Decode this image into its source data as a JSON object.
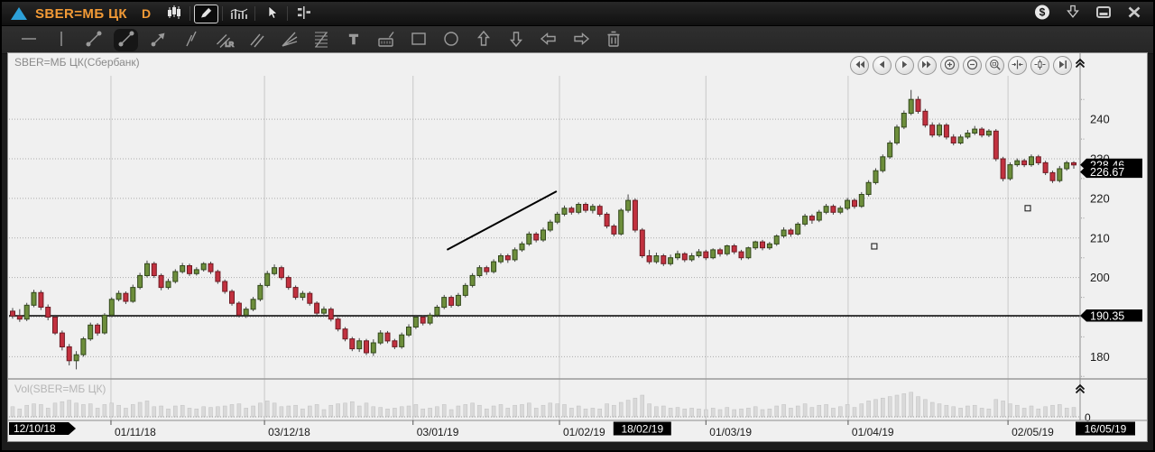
{
  "titlebar": {
    "symbol": "SBER=МБ ЦК",
    "timeframe": "D",
    "left_icons": [
      "chart-type",
      "draw",
      "indicators",
      "cursor",
      "objects-list"
    ],
    "left_selected": "draw",
    "right_icons": [
      "currency",
      "download",
      "restore",
      "close"
    ]
  },
  "toolbar": {
    "tools": [
      "horizontal-line",
      "vertical-line",
      "trend-line",
      "trend-ray",
      "arrow-line",
      "polyline",
      "linear-regression",
      "parallel-lines",
      "fan-lines",
      "fibonacci-levels",
      "text",
      "measure",
      "rectangle",
      "ellipse",
      "arrow-up",
      "arrow-down",
      "arrow-left",
      "arrow-right",
      "delete"
    ],
    "selected": "trend-ray",
    "lr_label": "LR",
    "text_tool_label": "T"
  },
  "chart": {
    "title": "SBER=МБ ЦК(Сбербанк)",
    "volume_title": "Vol(SBER=МБ ЦК)",
    "nav_buttons": [
      "scroll-left-fast",
      "scroll-left",
      "scroll-right",
      "scroll-right-fast",
      "zoom-in",
      "zoom-out",
      "zoom-area",
      "compress-horizontal",
      "compress-candles",
      "go-to-end"
    ]
  },
  "chart_data": {
    "type": "candlestick",
    "title": "SBER=МБ ЦК(Сбербанк)",
    "volume_title": "Vol(SBER=МБ ЦК)",
    "timeframe": "D",
    "ylim": [
      174,
      251
    ],
    "y_grid": [
      180,
      190,
      200,
      210,
      220,
      230,
      240
    ],
    "y_tick_labels": [
      180,
      200,
      210,
      220,
      230,
      240
    ],
    "y_minor": [
      175,
      185,
      195,
      205,
      215,
      225,
      235,
      245
    ],
    "price_tags": [
      {
        "text": "228.46",
        "price": 228.46
      },
      {
        "text": "226.67",
        "price": 226.67
      },
      {
        "text": "190.35",
        "price": 190.35
      }
    ],
    "x_ticks": [
      {
        "label": "01/11/18",
        "index": 13.9
      },
      {
        "label": "03/12/18",
        "index": 35.6
      },
      {
        "label": "03/01/19",
        "index": 56.6
      },
      {
        "label": "01/02/19",
        "index": 77.3
      },
      {
        "label": "01/03/19",
        "index": 98.0
      },
      {
        "label": "01/04/19",
        "index": 118.1
      },
      {
        "label": "02/05/19",
        "index": 140.7
      }
    ],
    "x_tags": [
      {
        "label": "12/10/18",
        "position": "left"
      },
      {
        "label": "18/02/19",
        "index": 89.0
      },
      {
        "label": "16/05/19",
        "position": "right"
      }
    ],
    "volume_zero_label": "0",
    "annotations": {
      "trendline": {
        "from": {
          "index": 61.4,
          "price": 207.0
        },
        "to": {
          "index": 76.9,
          "price": 221.8
        }
      },
      "horizontal_line_price": 190.35,
      "trade_markers": [
        {
          "index": 121.8,
          "price": 207.9
        },
        {
          "index": 143.5,
          "price": 217.5
        }
      ]
    },
    "colors": {
      "up": "#6d8e3b",
      "up_border": "#33491d",
      "down": "#c2313f",
      "down_border": "#6e1b24",
      "wick": "#444444",
      "background": "#f0f0f0",
      "grid_v": "#c9c9c9",
      "grid_h": "#ababab",
      "border": "#8c8c8c",
      "tag_bg": "#000000",
      "tag_text": "#ffffff",
      "volume_bar": "#d9d9d9",
      "volume_bar_edge": "#c0c0c0",
      "axis_text": "#1a1a1a",
      "accent_orange": "#f29a36",
      "logo_blue": "#2da0d8"
    },
    "candles": [
      [
        191.5,
        192.3,
        189.6,
        190.3,
        70
      ],
      [
        190.3,
        192.0,
        188.8,
        189.5,
        55
      ],
      [
        189.5,
        193.6,
        189.0,
        193.0,
        80
      ],
      [
        193.0,
        196.9,
        192.5,
        196.2,
        90
      ],
      [
        196.2,
        196.8,
        191.8,
        192.5,
        85
      ],
      [
        192.5,
        193.2,
        189.2,
        190.0,
        60
      ],
      [
        190.0,
        190.6,
        185.5,
        186.0,
        95
      ],
      [
        186.0,
        186.6,
        181.6,
        182.5,
        105
      ],
      [
        182.5,
        183.2,
        177.8,
        179.0,
        115
      ],
      [
        179.0,
        181.4,
        176.8,
        180.5,
        95
      ],
      [
        180.5,
        185.0,
        180.0,
        184.5,
        85
      ],
      [
        184.5,
        188.6,
        184.0,
        188.0,
        90
      ],
      [
        188.0,
        188.5,
        185.3,
        186.0,
        60
      ],
      [
        186.0,
        191.0,
        185.6,
        190.5,
        85
      ],
      [
        190.5,
        195.0,
        190.0,
        194.5,
        95
      ],
      [
        194.5,
        196.7,
        194.0,
        196.0,
        80
      ],
      [
        196.0,
        196.5,
        193.3,
        194.0,
        60
      ],
      [
        194.0,
        198.2,
        193.6,
        197.5,
        85
      ],
      [
        197.5,
        201.2,
        197.0,
        200.5,
        100
      ],
      [
        200.5,
        204.3,
        200.0,
        203.5,
        110
      ],
      [
        203.5,
        204.0,
        199.9,
        200.5,
        70
      ],
      [
        200.5,
        201.0,
        196.8,
        197.5,
        75
      ],
      [
        197.5,
        199.7,
        197.0,
        199.0,
        55
      ],
      [
        199.0,
        202.1,
        198.5,
        201.5,
        75
      ],
      [
        201.5,
        203.7,
        201.0,
        203.0,
        80
      ],
      [
        203.0,
        203.5,
        200.4,
        201.0,
        60
      ],
      [
        201.0,
        202.6,
        200.5,
        202.0,
        55
      ],
      [
        202.0,
        203.9,
        201.5,
        203.5,
        70
      ],
      [
        203.5,
        204.0,
        200.9,
        201.5,
        65
      ],
      [
        201.5,
        202.0,
        198.4,
        199.0,
        70
      ],
      [
        199.0,
        199.5,
        195.9,
        196.5,
        75
      ],
      [
        196.5,
        197.0,
        192.9,
        193.5,
        85
      ],
      [
        193.5,
        194.0,
        189.9,
        190.5,
        90
      ],
      [
        190.5,
        192.6,
        189.8,
        192.0,
        60
      ],
      [
        192.0,
        195.1,
        191.5,
        194.5,
        75
      ],
      [
        194.5,
        198.6,
        194.0,
        198.0,
        95
      ],
      [
        198.0,
        201.7,
        197.5,
        201.0,
        110
      ],
      [
        201.0,
        203.3,
        200.5,
        202.5,
        95
      ],
      [
        202.5,
        203.0,
        199.4,
        200.0,
        70
      ],
      [
        200.0,
        200.5,
        196.9,
        197.5,
        75
      ],
      [
        197.5,
        198.0,
        194.4,
        195.0,
        80
      ],
      [
        195.0,
        196.6,
        194.2,
        196.0,
        55
      ],
      [
        196.0,
        196.5,
        192.9,
        193.5,
        75
      ],
      [
        193.5,
        194.0,
        190.4,
        191.0,
        85
      ],
      [
        191.0,
        192.7,
        190.2,
        192.0,
        50
      ],
      [
        192.0,
        192.5,
        188.9,
        189.5,
        80
      ],
      [
        189.5,
        190.0,
        186.4,
        187.0,
        90
      ],
      [
        187.0,
        187.5,
        183.9,
        184.5,
        95
      ],
      [
        184.5,
        185.0,
        181.4,
        182.0,
        105
      ],
      [
        182.0,
        184.7,
        181.2,
        184.0,
        75
      ],
      [
        184.0,
        184.5,
        180.4,
        181.0,
        95
      ],
      [
        181.0,
        184.4,
        180.2,
        183.5,
        70
      ],
      [
        183.5,
        186.7,
        183.0,
        186.0,
        65
      ],
      [
        186.0,
        186.5,
        183.4,
        184.0,
        55
      ],
      [
        184.0,
        184.5,
        181.9,
        182.5,
        60
      ],
      [
        182.5,
        186.1,
        182.0,
        185.5,
        70
      ],
      [
        185.5,
        188.2,
        185.0,
        187.5,
        75
      ],
      [
        187.5,
        190.6,
        187.0,
        190.0,
        85
      ],
      [
        190.0,
        190.5,
        187.9,
        188.5,
        55
      ],
      [
        188.5,
        191.1,
        188.0,
        190.5,
        60
      ],
      [
        190.5,
        193.1,
        190.0,
        192.5,
        70
      ],
      [
        192.5,
        195.6,
        192.0,
        195.0,
        85
      ],
      [
        195.0,
        195.5,
        192.4,
        193.0,
        50
      ],
      [
        193.0,
        196.1,
        192.6,
        195.5,
        75
      ],
      [
        195.5,
        198.6,
        195.0,
        198.0,
        85
      ],
      [
        198.0,
        201.1,
        197.5,
        200.5,
        95
      ],
      [
        200.5,
        203.1,
        200.0,
        202.5,
        80
      ],
      [
        202.5,
        203.0,
        200.7,
        201.5,
        55
      ],
      [
        201.5,
        204.6,
        201.0,
        204.0,
        75
      ],
      [
        204.0,
        206.1,
        203.5,
        205.5,
        85
      ],
      [
        205.5,
        206.0,
        203.7,
        204.5,
        60
      ],
      [
        204.5,
        207.6,
        204.0,
        207.0,
        80
      ],
      [
        207.0,
        209.1,
        206.5,
        208.5,
        85
      ],
      [
        208.5,
        211.6,
        208.0,
        211.0,
        95
      ],
      [
        211.0,
        211.5,
        208.9,
        209.5,
        60
      ],
      [
        209.5,
        212.6,
        209.0,
        212.0,
        80
      ],
      [
        212.0,
        214.6,
        211.5,
        214.0,
        95
      ],
      [
        214.0,
        216.6,
        213.5,
        216.0,
        90
      ],
      [
        216.0,
        218.2,
        215.5,
        217.5,
        85
      ],
      [
        217.5,
        218.0,
        215.9,
        216.5,
        60
      ],
      [
        216.5,
        219.0,
        216.0,
        218.5,
        75
      ],
      [
        218.5,
        219.0,
        216.4,
        217.0,
        55
      ],
      [
        217.0,
        218.6,
        216.2,
        218.0,
        60
      ],
      [
        218.0,
        218.5,
        215.4,
        216.0,
        55
      ],
      [
        216.0,
        216.5,
        212.4,
        213.0,
        90
      ],
      [
        213.0,
        213.5,
        210.4,
        211.0,
        80
      ],
      [
        211.0,
        217.5,
        210.6,
        217.0,
        100
      ],
      [
        217.0,
        221.0,
        216.4,
        219.5,
        115
      ],
      [
        219.5,
        220.0,
        211.4,
        212.0,
        130
      ],
      [
        212.0,
        212.5,
        204.9,
        205.5,
        150
      ],
      [
        205.5,
        207.0,
        203.4,
        204.0,
        90
      ],
      [
        204.0,
        206.3,
        203.5,
        205.5,
        70
      ],
      [
        205.5,
        206.0,
        202.9,
        203.5,
        75
      ],
      [
        203.5,
        205.8,
        203.0,
        205.0,
        60
      ],
      [
        205.0,
        206.8,
        204.4,
        206.0,
        65
      ],
      [
        206.0,
        206.4,
        203.9,
        204.5,
        55
      ],
      [
        204.5,
        206.2,
        204.0,
        205.5,
        60
      ],
      [
        205.5,
        207.2,
        205.0,
        206.5,
        55
      ],
      [
        206.5,
        207.0,
        204.4,
        205.0,
        50
      ],
      [
        205.0,
        207.4,
        204.6,
        207.0,
        60
      ],
      [
        207.0,
        207.5,
        205.3,
        206.0,
        50
      ],
      [
        206.0,
        208.3,
        205.5,
        208.0,
        65
      ],
      [
        208.0,
        208.5,
        205.9,
        206.5,
        50
      ],
      [
        206.5,
        207.0,
        204.4,
        205.0,
        55
      ],
      [
        205.0,
        207.8,
        204.6,
        207.5,
        60
      ],
      [
        207.5,
        209.3,
        207.0,
        209.0,
        70
      ],
      [
        209.0,
        209.5,
        206.9,
        207.5,
        50
      ],
      [
        207.5,
        209.0,
        207.0,
        208.5,
        55
      ],
      [
        208.5,
        210.9,
        208.0,
        210.5,
        75
      ],
      [
        210.5,
        212.7,
        210.0,
        212.0,
        85
      ],
      [
        212.0,
        212.5,
        210.3,
        211.0,
        60
      ],
      [
        211.0,
        214.0,
        210.6,
        213.5,
        75
      ],
      [
        213.5,
        216.1,
        213.0,
        215.5,
        90
      ],
      [
        215.5,
        216.0,
        213.6,
        214.5,
        65
      ],
      [
        214.5,
        217.1,
        214.0,
        216.5,
        80
      ],
      [
        216.5,
        218.6,
        216.0,
        218.0,
        85
      ],
      [
        218.0,
        218.5,
        215.9,
        216.5,
        60
      ],
      [
        216.5,
        218.1,
        216.0,
        217.5,
        70
      ],
      [
        217.5,
        220.1,
        217.0,
        219.5,
        85
      ],
      [
        219.5,
        220.0,
        217.4,
        218.0,
        65
      ],
      [
        218.0,
        221.6,
        217.6,
        221.0,
        90
      ],
      [
        221.0,
        224.6,
        220.5,
        224.0,
        110
      ],
      [
        224.0,
        227.6,
        223.5,
        227.0,
        120
      ],
      [
        227.0,
        231.1,
        226.5,
        230.5,
        130
      ],
      [
        230.5,
        234.6,
        230.0,
        234.0,
        140
      ],
      [
        234.0,
        238.6,
        233.5,
        238.0,
        150
      ],
      [
        238.0,
        242.2,
        237.5,
        241.5,
        160
      ],
      [
        241.5,
        247.4,
        241.0,
        245.0,
        170
      ],
      [
        245.0,
        245.8,
        241.4,
        242.0,
        140
      ],
      [
        242.0,
        242.6,
        237.9,
        238.5,
        120
      ],
      [
        238.5,
        239.2,
        235.4,
        236.0,
        100
      ],
      [
        236.0,
        239.1,
        235.5,
        238.5,
        90
      ],
      [
        238.5,
        239.0,
        234.9,
        235.5,
        80
      ],
      [
        235.5,
        236.2,
        233.4,
        234.0,
        70
      ],
      [
        234.0,
        236.1,
        233.6,
        235.5,
        60
      ],
      [
        235.5,
        237.3,
        235.0,
        236.5,
        75
      ],
      [
        236.5,
        238.3,
        236.0,
        237.5,
        80
      ],
      [
        237.5,
        238.0,
        235.4,
        236.0,
        60
      ],
      [
        236.0,
        237.5,
        235.5,
        237.0,
        55
      ],
      [
        237.0,
        237.5,
        229.4,
        230.0,
        120
      ],
      [
        230.0,
        230.5,
        224.3,
        225.0,
        110
      ],
      [
        225.0,
        229.1,
        224.5,
        228.5,
        90
      ],
      [
        228.5,
        230.1,
        228.0,
        229.5,
        80
      ],
      [
        229.5,
        230.0,
        227.9,
        228.5,
        60
      ],
      [
        228.5,
        231.1,
        228.0,
        230.5,
        75
      ],
      [
        230.5,
        231.0,
        228.4,
        229.0,
        55
      ],
      [
        229.0,
        229.5,
        225.9,
        226.5,
        70
      ],
      [
        226.5,
        227.0,
        223.9,
        224.5,
        80
      ],
      [
        224.5,
        228.2,
        224.0,
        227.5,
        85
      ],
      [
        227.5,
        229.5,
        227.0,
        229.0,
        60
      ],
      [
        229.0,
        229.4,
        227.5,
        228.46,
        65
      ]
    ]
  }
}
